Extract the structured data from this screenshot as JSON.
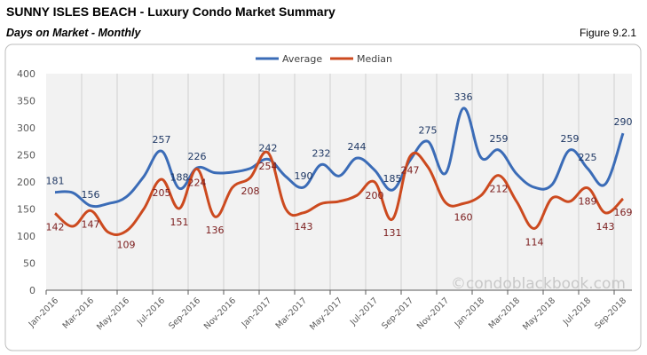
{
  "header": {
    "title": "SUNNY ISLES BEACH - Luxury Condo Market Summary",
    "subtitle": "Days on Market - Monthly",
    "figure": "Figure 9.2.1"
  },
  "watermark": "©condoblackbook.com",
  "chart_data": {
    "type": "line",
    "title": "Days on Market - Monthly",
    "xlabel": "",
    "ylabel": "",
    "ylim": [
      0,
      400
    ],
    "yticks": [
      0,
      50,
      100,
      150,
      200,
      250,
      300,
      350,
      400
    ],
    "grid": "vertical",
    "legend": "top-center",
    "x": [
      "Jan-2016",
      "Feb-2016",
      "Mar-2016",
      "Apr-2016",
      "May-2016",
      "Jun-2016",
      "Jul-2016",
      "Aug-2016",
      "Sep-2016",
      "Oct-2016",
      "Nov-2016",
      "Dec-2016",
      "Jan-2017",
      "Feb-2017",
      "Mar-2017",
      "Apr-2017",
      "May-2017",
      "Jun-2017",
      "Jul-2017",
      "Aug-2017",
      "Sep-2017",
      "Oct-2017",
      "Nov-2017",
      "Dec-2017",
      "Jan-2018",
      "Feb-2018",
      "Mar-2018",
      "Apr-2018",
      "May-2018",
      "Jun-2018",
      "Jul-2018",
      "Aug-2018",
      "Sep-2018"
    ],
    "xtick_labels": [
      "Jan-2016",
      "Mar-2016",
      "May-2016",
      "Jul-2016",
      "Sep-2016",
      "Nov-2016",
      "Jan-2017",
      "Mar-2017",
      "May-2017",
      "Jul-2017",
      "Sep-2017",
      "Nov-2017",
      "Jan-2018",
      "Mar-2018",
      "May-2018",
      "Jul-2018",
      "Sep-2018"
    ],
    "series": [
      {
        "name": "Average",
        "color": "#3b6cb7",
        "values": [
          181,
          180,
          156,
          160,
          172,
          210,
          257,
          188,
          226,
          217,
          218,
          225,
          242,
          210,
          190,
          232,
          211,
          244,
          222,
          185,
          240,
          275,
          216,
          336,
          245,
          259,
          215,
          190,
          195,
          259,
          225,
          196,
          290
        ],
        "labeled": [
          0,
          2,
          6,
          7,
          8,
          12,
          14,
          15,
          17,
          19,
          21,
          23,
          25,
          29,
          30,
          32
        ]
      },
      {
        "name": "Median",
        "color": "#cc4a1f",
        "values": [
          142,
          118,
          147,
          107,
          109,
          150,
          205,
          151,
          224,
          136,
          190,
          208,
          254,
          150,
          143,
          160,
          164,
          175,
          200,
          131,
          247,
          228,
          162,
          160,
          175,
          212,
          164,
          114,
          170,
          164,
          189,
          143,
          169
        ],
        "labeled": [
          0,
          2,
          4,
          6,
          7,
          8,
          9,
          11,
          12,
          14,
          18,
          19,
          20,
          23,
          25,
          27,
          30,
          31,
          32
        ]
      }
    ]
  }
}
